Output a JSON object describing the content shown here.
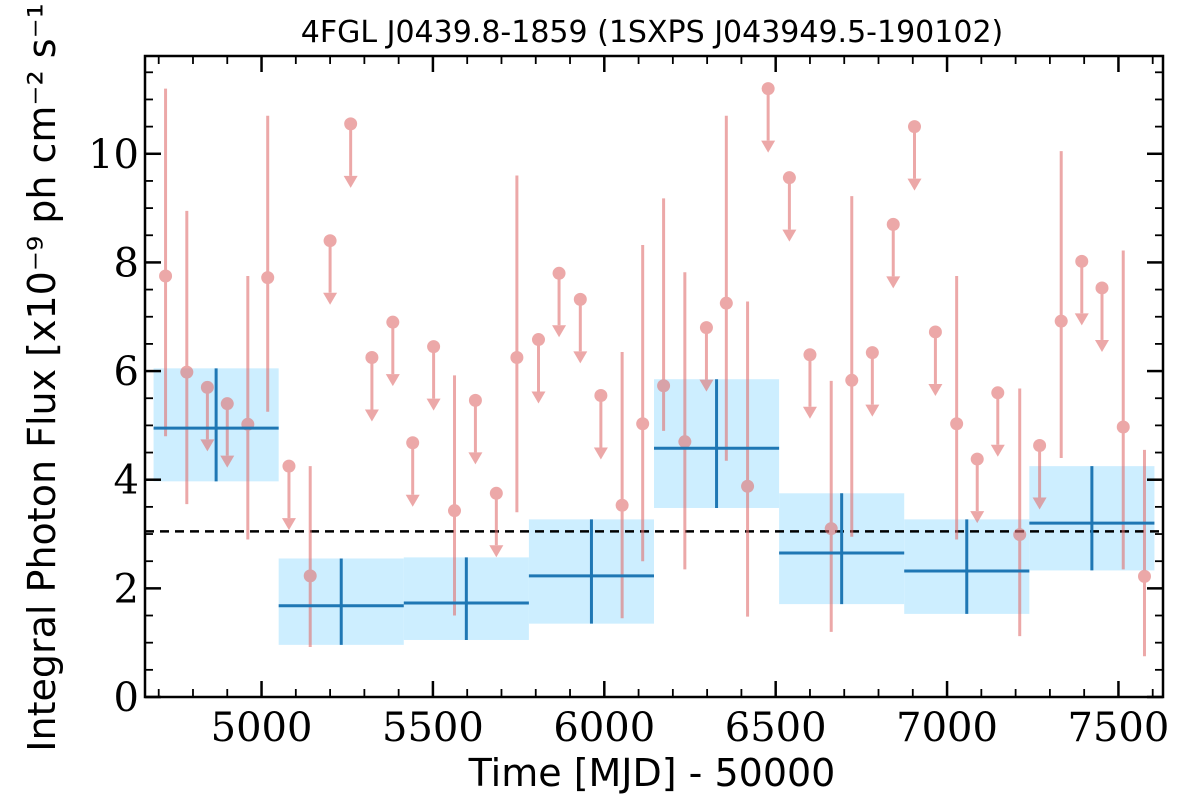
{
  "chart_data": {
    "type": "scatter",
    "title": "4FGL J0439.8-1859 (1SXPS J043949.5-190102)",
    "xlabel": "Time [MJD] - 50000",
    "ylabel": "Integral Photon Flux [x10⁻⁹ ph cm⁻² s⁻¹]",
    "xlim": [
      4660,
      7630
    ],
    "ylim": [
      0,
      11.8
    ],
    "xticks": [
      5000,
      5500,
      6000,
      6500,
      7000,
      7500
    ],
    "yticks": [
      0,
      2,
      4,
      6,
      8,
      10
    ],
    "grid": false,
    "colors": {
      "points": "#e07070",
      "bins_fill": "#cdeeff",
      "bins_line": "#1f77b4",
      "mean_line": "#000000"
    },
    "mean_flux": 3.05,
    "detections": [
      {
        "x": 4720,
        "y": 7.75,
        "ylo": 4.8,
        "yhi": 11.2
      },
      {
        "x": 4782,
        "y": 5.98,
        "ylo": 3.55,
        "yhi": 8.95
      },
      {
        "x": 4960,
        "y": 5.02,
        "ylo": 2.9,
        "yhi": 7.75
      },
      {
        "x": 5018,
        "y": 7.72,
        "ylo": 5.25,
        "yhi": 10.7
      },
      {
        "x": 5142,
        "y": 2.23,
        "ylo": 0.92,
        "yhi": 4.25
      },
      {
        "x": 5563,
        "y": 3.43,
        "ylo": 1.5,
        "yhi": 5.92
      },
      {
        "x": 5745,
        "y": 6.25,
        "ylo": 3.4,
        "yhi": 9.6
      },
      {
        "x": 6052,
        "y": 3.53,
        "ylo": 1.45,
        "yhi": 6.35
      },
      {
        "x": 6112,
        "y": 5.03,
        "ylo": 2.5,
        "yhi": 8.32
      },
      {
        "x": 6173,
        "y": 5.73,
        "ylo": 4.9,
        "yhi": 9.18
      },
      {
        "x": 6235,
        "y": 4.7,
        "ylo": 2.35,
        "yhi": 7.82
      },
      {
        "x": 6356,
        "y": 7.25,
        "ylo": 4.35,
        "yhi": 10.7
      },
      {
        "x": 6418,
        "y": 3.88,
        "ylo": 1.48,
        "yhi": 7.28
      },
      {
        "x": 6662,
        "y": 3.1,
        "ylo": 1.2,
        "yhi": 5.82
      },
      {
        "x": 6722,
        "y": 5.83,
        "ylo": 2.95,
        "yhi": 9.22
      },
      {
        "x": 7028,
        "y": 5.03,
        "ylo": 2.9,
        "yhi": 7.75
      },
      {
        "x": 7212,
        "y": 2.99,
        "ylo": 1.12,
        "yhi": 5.68
      },
      {
        "x": 7333,
        "y": 6.92,
        "ylo": 4.4,
        "yhi": 10.05
      },
      {
        "x": 7514,
        "y": 4.97,
        "ylo": 2.35,
        "yhi": 8.22
      },
      {
        "x": 7576,
        "y": 2.22,
        "ylo": 0.75,
        "yhi": 4.55
      }
    ],
    "upper_limits": [
      {
        "x": 4842,
        "y": 5.7
      },
      {
        "x": 4900,
        "y": 5.4
      },
      {
        "x": 5080,
        "y": 4.25
      },
      {
        "x": 5200,
        "y": 8.4
      },
      {
        "x": 5260,
        "y": 10.55
      },
      {
        "x": 5322,
        "y": 6.25
      },
      {
        "x": 5383,
        "y": 6.9
      },
      {
        "x": 5441,
        "y": 4.68
      },
      {
        "x": 5502,
        "y": 6.45
      },
      {
        "x": 5624,
        "y": 5.46
      },
      {
        "x": 5685,
        "y": 3.75
      },
      {
        "x": 5808,
        "y": 6.58
      },
      {
        "x": 5868,
        "y": 7.8
      },
      {
        "x": 5930,
        "y": 7.32
      },
      {
        "x": 5990,
        "y": 5.55
      },
      {
        "x": 6298,
        "y": 6.8
      },
      {
        "x": 6478,
        "y": 11.2
      },
      {
        "x": 6540,
        "y": 9.56
      },
      {
        "x": 6600,
        "y": 6.3
      },
      {
        "x": 6782,
        "y": 6.34
      },
      {
        "x": 6843,
        "y": 8.7
      },
      {
        "x": 6905,
        "y": 10.5
      },
      {
        "x": 6966,
        "y": 6.72
      },
      {
        "x": 7088,
        "y": 4.38
      },
      {
        "x": 7148,
        "y": 5.6
      },
      {
        "x": 7270,
        "y": 4.63
      },
      {
        "x": 7393,
        "y": 8.02
      },
      {
        "x": 7452,
        "y": 7.53
      }
    ],
    "bins": [
      {
        "x0": 4685,
        "x1": 5050,
        "y": 4.95,
        "ylo": 3.97,
        "yhi": 6.05
      },
      {
        "x0": 5050,
        "x1": 5415,
        "y": 1.68,
        "ylo": 0.96,
        "yhi": 2.55
      },
      {
        "x0": 5415,
        "x1": 5780,
        "y": 1.73,
        "ylo": 1.05,
        "yhi": 2.57
      },
      {
        "x0": 5780,
        "x1": 6145,
        "y": 2.23,
        "ylo": 1.35,
        "yhi": 3.27
      },
      {
        "x0": 6145,
        "x1": 6510,
        "y": 4.58,
        "ylo": 3.48,
        "yhi": 5.85
      },
      {
        "x0": 6510,
        "x1": 6875,
        "y": 2.65,
        "ylo": 1.71,
        "yhi": 3.75
      },
      {
        "x0": 6875,
        "x1": 7240,
        "y": 2.32,
        "ylo": 1.53,
        "yhi": 3.27
      },
      {
        "x0": 7240,
        "x1": 7605,
        "y": 3.2,
        "ylo": 2.33,
        "yhi": 4.25
      }
    ]
  }
}
